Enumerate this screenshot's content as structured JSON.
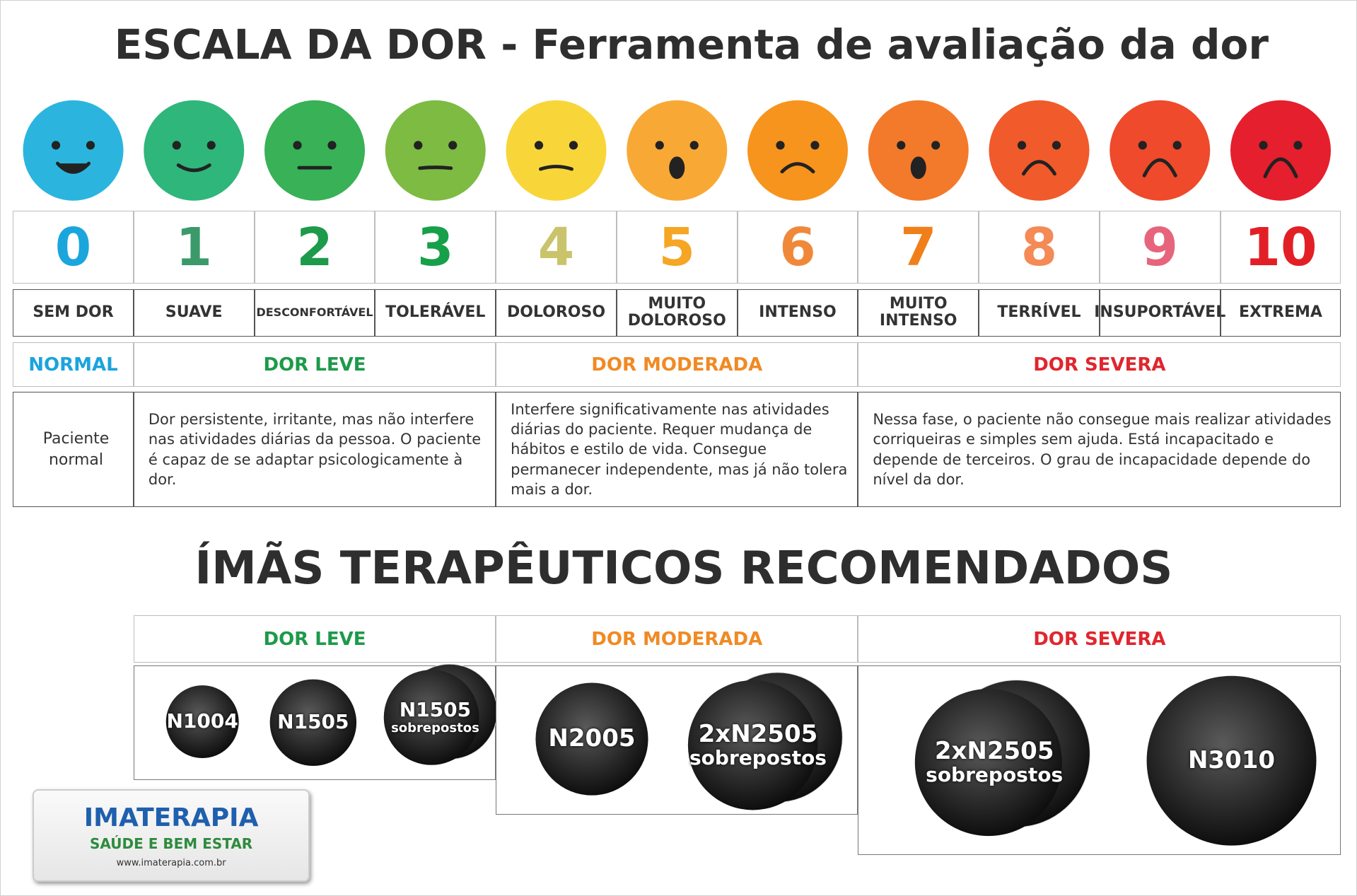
{
  "title": "ESCALA DA DOR - Ferramenta de avaliação da dor",
  "scale": [
    {
      "number": 0,
      "label": "SEM DOR",
      "face_color": "#2bb5de",
      "number_color": "#1aa6dc"
    },
    {
      "number": 1,
      "label": "SUAVE",
      "face_color": "#2fb67a",
      "number_color": "#3a9a6a"
    },
    {
      "number": 2,
      "label": "DESCONFORTÁVEL",
      "face_color": "#38b157",
      "number_color": "#1d9a4a"
    },
    {
      "number": 3,
      "label": "TOLERÁVEL",
      "face_color": "#7dbb42",
      "number_color": "#17a04a"
    },
    {
      "number": 4,
      "label": "DOLOROSO",
      "face_color": "#f8d63a",
      "number_color": "#c9c46b"
    },
    {
      "number": 5,
      "label": "MUITO DOLOROSO",
      "face_color": "#f8a935",
      "number_color": "#f5a623"
    },
    {
      "number": 6,
      "label": "INTENSO",
      "face_color": "#f7941d",
      "number_color": "#f0883a"
    },
    {
      "number": 7,
      "label": "MUITO INTENSO",
      "face_color": "#f37a2a",
      "number_color": "#f07f1a"
    },
    {
      "number": 8,
      "label": "TERRÍVEL",
      "face_color": "#f15a2b",
      "number_color": "#f48a55"
    },
    {
      "number": 9,
      "label": "INSUPORTÁVEL",
      "face_color": "#ee4a2b",
      "number_color": "#e7657c"
    },
    {
      "number": 10,
      "label": "EXTREMA",
      "face_color": "#e51f2d",
      "number_color": "#e31f26"
    }
  ],
  "categories": [
    {
      "name": "NORMAL",
      "color": "#1aa4dc",
      "description": "Paciente normal"
    },
    {
      "name": "DOR LEVE",
      "color": "#1d9a4a",
      "description": "Dor persistente, irritante, mas não interfere nas atividades diárias da pessoa. O paciente é capaz de se adaptar psicologicamente à dor."
    },
    {
      "name": "DOR MODERADA",
      "color": "#f08a24",
      "description": "Interfere significativamente nas atividades diárias do paciente. Requer mudança de hábitos e estilo de vida. Consegue permanecer independente, mas já não tolera mais a dor."
    },
    {
      "name": "DOR SEVERA",
      "color": "#e0262e",
      "description": "Nessa fase, o paciente não consegue mais realizar atividades corriqueiras e simples sem ajuda. Está incapacitado e depende de terceiros. O grau de incapacidade depende do nível da dor."
    }
  ],
  "recommendations": {
    "title": "ÍMÃS TERAPÊUTICOS RECOMENDADOS",
    "groups": [
      {
        "name": "DOR LEVE",
        "items": [
          {
            "name": "N1004"
          },
          {
            "name": "N1505"
          },
          {
            "name": "N1505",
            "note": "sobrepostos"
          }
        ]
      },
      {
        "name": "DOR MODERADA",
        "items": [
          {
            "name": "N2005"
          },
          {
            "name": "2xN2505",
            "note": "sobrepostos"
          }
        ]
      },
      {
        "name": "DOR SEVERA",
        "items": [
          {
            "name": "2xN2505",
            "note": "sobrepostos"
          },
          {
            "name": "N3010"
          }
        ]
      }
    ]
  },
  "logo": {
    "brand": "IMATERAPIA",
    "tagline": "SAÚDE E BEM ESTAR",
    "url": "www.imaterapia.com.br"
  }
}
